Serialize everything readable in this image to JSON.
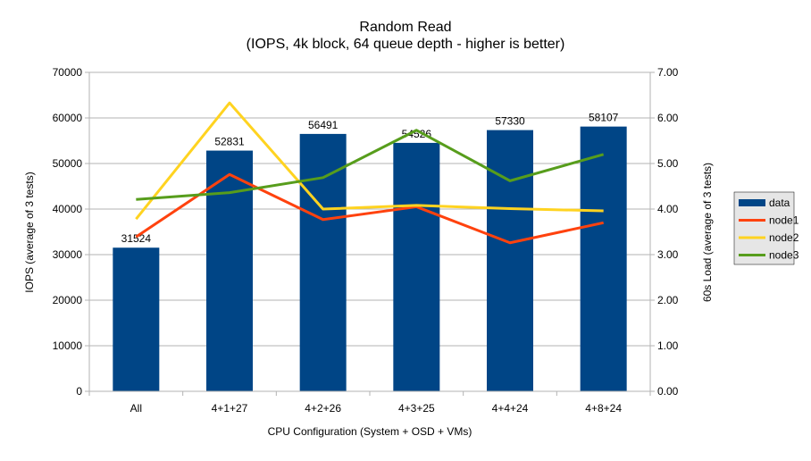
{
  "chart_data": {
    "type": "bar",
    "title": "Random Read",
    "subtitle": "(IOPS, 4k block, 64 queue depth - higher is better)",
    "xlabel": "CPU Configuration (System + OSD + VMs)",
    "ylabel": "IOPS (average of 3 tests)",
    "y2label": "60s Load (average of 3 tests)",
    "ylim": [
      0,
      70000
    ],
    "y2lim": [
      0,
      7
    ],
    "yticks": [
      "0",
      "10000",
      "20000",
      "30000",
      "40000",
      "50000",
      "60000",
      "70000"
    ],
    "y2ticks": [
      "0.00",
      "1.00",
      "2.00",
      "3.00",
      "4.00",
      "5.00",
      "6.00",
      "7.00"
    ],
    "grid": true,
    "legend_position": "right",
    "categories": [
      "All",
      "4+1+27",
      "4+2+26",
      "4+3+25",
      "4+4+24",
      "4+8+24"
    ],
    "series": [
      {
        "name": "data",
        "type": "bar",
        "axis": "left",
        "color": "#004586",
        "values": [
          31524,
          52831,
          56491,
          54526,
          57330,
          58107
        ],
        "labels": [
          "31524",
          "52831",
          "56491",
          "54526",
          "57330",
          "58107"
        ]
      },
      {
        "name": "node1",
        "type": "line",
        "axis": "right",
        "color": "#ff420e",
        "values": [
          3.39,
          4.76,
          3.77,
          4.05,
          3.26,
          3.7
        ]
      },
      {
        "name": "node2",
        "type": "line",
        "axis": "right",
        "color": "#ffd320",
        "values": [
          3.78,
          6.33,
          4.0,
          4.08,
          4.01,
          3.96
        ]
      },
      {
        "name": "node3",
        "type": "line",
        "axis": "right",
        "color": "#579d1c",
        "values": [
          4.21,
          4.36,
          4.69,
          5.73,
          4.62,
          5.2
        ]
      }
    ]
  }
}
